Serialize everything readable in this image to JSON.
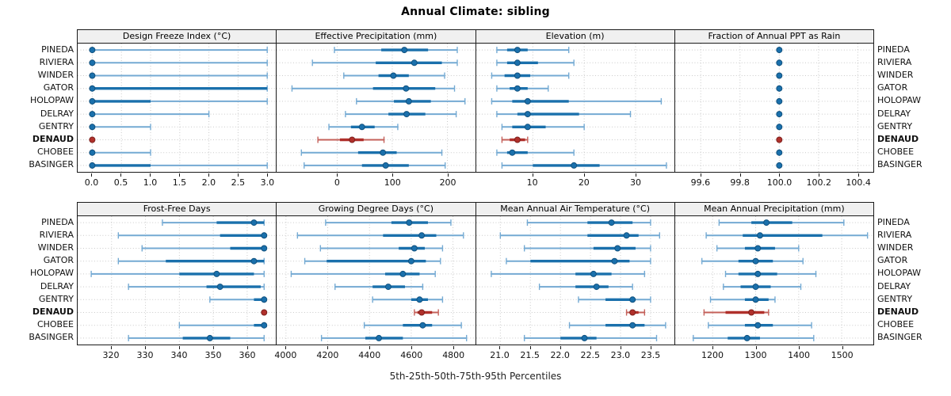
{
  "title": "Annual Climate: sibling",
  "footer": "5th-25th-50th-75th-95th Percentiles",
  "colors": {
    "blue_band": "#1a70ac",
    "blue_whisker": "#74aad3",
    "blue_dot_edge": "#11517e",
    "red_band": "#b0302b",
    "red_whisker": "#c4605a",
    "red_dot_edge": "#7e211d",
    "grid": "#c9c9c9",
    "panel_border": "#1a1a1a",
    "header_bg": "#f0f0f0"
  },
  "chart_data": {
    "type": "dotplot",
    "subtype": "percentile-interval-trellis",
    "title": "Annual Climate: sibling",
    "caption": "5th-25th-50th-75th-95th Percentiles",
    "percentiles": [
      5,
      25,
      50,
      75,
      95
    ],
    "grid": "dotted",
    "stations": [
      "PINEDA",
      "RIVIERA",
      "WINDER",
      "GATOR",
      "HOLOPAW",
      "DELRAY",
      "GENTRY",
      "DENAUD",
      "CHOBEE",
      "BASINGER"
    ],
    "highlighted_station": "DENAUD",
    "panels": [
      {
        "title": "Design Freeze Index (°C)",
        "xlim": [
          -0.25,
          3.15
        ],
        "ticks": [
          0.0,
          0.5,
          1.0,
          1.5,
          2.0,
          2.5,
          3.0
        ],
        "tick_labels": [
          "0.0",
          "0.5",
          "1.0",
          "1.5",
          "2.0",
          "2.5",
          "3.0"
        ],
        "values": [
          [
            0,
            0,
            0,
            0,
            3
          ],
          [
            0,
            0,
            0,
            0,
            3
          ],
          [
            0,
            0,
            0,
            0,
            3
          ],
          [
            0,
            0,
            0,
            3,
            3
          ],
          [
            0,
            0,
            0,
            1,
            3
          ],
          [
            0,
            0,
            0,
            0,
            2
          ],
          [
            0,
            0,
            0,
            0,
            1
          ],
          [
            0,
            0,
            0,
            0,
            0
          ],
          [
            0,
            0,
            0,
            0,
            1
          ],
          [
            0,
            0,
            0,
            1,
            3
          ]
        ]
      },
      {
        "title": "Effective Precipitation (mm)",
        "xlim": [
          -110,
          250
        ],
        "ticks": [
          0,
          100,
          200
        ],
        "tick_labels": [
          "0",
          "100",
          "200"
        ],
        "values": [
          [
            -5,
            80,
            122,
            165,
            218
          ],
          [
            -45,
            70,
            140,
            190,
            218
          ],
          [
            12,
            75,
            102,
            130,
            195
          ],
          [
            -82,
            65,
            125,
            178,
            213
          ],
          [
            35,
            103,
            130,
            170,
            232
          ],
          [
            15,
            93,
            126,
            160,
            216
          ],
          [
            -15,
            25,
            45,
            68,
            110
          ],
          [
            -35,
            5,
            27,
            48,
            85
          ],
          [
            -65,
            38,
            83,
            108,
            190
          ],
          [
            -60,
            45,
            88,
            130,
            196
          ]
        ]
      },
      {
        "title": "Elevation (m)",
        "xlim": [
          -1,
          37.6
        ],
        "ticks": [
          10,
          20,
          30
        ],
        "tick_labels": [
          "10",
          "20",
          "30"
        ],
        "values": [
          [
            3,
            5,
            7,
            9,
            17
          ],
          [
            3,
            5,
            7,
            11,
            18
          ],
          [
            2,
            4.5,
            7,
            9.5,
            17
          ],
          [
            3,
            5.5,
            7,
            9,
            13
          ],
          [
            2,
            6,
            9,
            17,
            35
          ],
          [
            3,
            7,
            9,
            19,
            29
          ],
          [
            4,
            6,
            9,
            12.5,
            20
          ],
          [
            4,
            5.5,
            7,
            8.5,
            9
          ],
          [
            3,
            5,
            6,
            9,
            18
          ],
          [
            4,
            10,
            18,
            23,
            36
          ]
        ]
      },
      {
        "title": "Fraction of Annual PPT as Rain",
        "xlim": [
          99.47,
          100.48
        ],
        "ticks": [
          99.6,
          99.8,
          100.0,
          100.2,
          100.4
        ],
        "tick_labels": [
          "99.6",
          "99.8",
          "100.0",
          "100.2",
          "100.4"
        ],
        "values": [
          [
            100,
            100,
            100,
            100,
            100
          ],
          [
            100,
            100,
            100,
            100,
            100
          ],
          [
            100,
            100,
            100,
            100,
            100
          ],
          [
            100,
            100,
            100,
            100,
            100
          ],
          [
            100,
            100,
            100,
            100,
            100
          ],
          [
            100,
            100,
            100,
            100,
            100
          ],
          [
            100,
            100,
            100,
            100,
            100
          ],
          [
            100,
            100,
            100,
            100,
            100
          ],
          [
            100,
            100,
            100,
            100,
            100
          ],
          [
            100,
            100,
            100,
            100,
            100
          ]
        ]
      },
      {
        "title": "Frost-Free Days",
        "xlim": [
          310,
          368.5
        ],
        "ticks": [
          320,
          330,
          340,
          350,
          360
        ],
        "tick_labels": [
          "320",
          "330",
          "340",
          "350",
          "360"
        ],
        "values": [
          [
            335,
            351,
            362,
            365,
            365
          ],
          [
            322,
            352,
            365,
            365,
            365
          ],
          [
            329,
            355,
            365,
            365,
            365
          ],
          [
            322,
            336,
            362,
            365,
            365
          ],
          [
            314,
            340,
            351,
            362,
            365
          ],
          [
            325,
            348,
            352,
            364,
            365
          ],
          [
            349,
            362,
            365,
            365,
            365
          ],
          [
            365,
            365,
            365,
            365,
            365
          ],
          [
            340,
            362,
            365,
            365,
            365
          ],
          [
            325,
            341,
            349,
            355,
            365
          ]
        ]
      },
      {
        "title": "Growing Degree Days (°C)",
        "xlim": [
          3955,
          4905
        ],
        "ticks": [
          4000,
          4200,
          4400,
          4600,
          4800
        ],
        "tick_labels": [
          "4000",
          "4200",
          "4400",
          "4600",
          "4800"
        ],
        "values": [
          [
            4190,
            4505,
            4590,
            4680,
            4790
          ],
          [
            4055,
            4465,
            4650,
            4720,
            4850
          ],
          [
            4165,
            4540,
            4615,
            4665,
            4750
          ],
          [
            4090,
            4195,
            4600,
            4670,
            4740
          ],
          [
            4025,
            4475,
            4560,
            4640,
            4715
          ],
          [
            4235,
            4415,
            4490,
            4570,
            4655
          ],
          [
            4415,
            4600,
            4640,
            4680,
            4750
          ],
          [
            4615,
            4630,
            4650,
            4700,
            4730
          ],
          [
            4375,
            4560,
            4655,
            4700,
            4840
          ],
          [
            4170,
            4380,
            4445,
            4560,
            4865
          ]
        ]
      },
      {
        "title": "Mean Annual Air Temperature (°C)",
        "xlim": [
          20.6,
          23.9
        ],
        "ticks": [
          21.0,
          21.5,
          22.0,
          22.5,
          23.0,
          23.5
        ],
        "tick_labels": [
          "21.0",
          "21.5",
          "22.0",
          "22.5",
          "23.0",
          "23.5"
        ],
        "values": [
          [
            21.45,
            22.45,
            22.85,
            23.2,
            23.5
          ],
          [
            21.0,
            22.45,
            23.1,
            23.3,
            23.65
          ],
          [
            21.4,
            22.55,
            22.95,
            23.25,
            23.5
          ],
          [
            21.1,
            21.5,
            22.9,
            23.15,
            23.5
          ],
          [
            20.85,
            22.25,
            22.55,
            22.85,
            23.4
          ],
          [
            21.65,
            22.25,
            22.6,
            22.8,
            23.2
          ],
          [
            22.3,
            22.75,
            23.2,
            23.25,
            23.5
          ],
          [
            23.1,
            23.15,
            23.2,
            23.3,
            23.4
          ],
          [
            22.15,
            22.75,
            23.2,
            23.4,
            23.75
          ],
          [
            21.4,
            22.0,
            22.4,
            22.6,
            23.6
          ]
        ]
      },
      {
        "title": "Mean Annual Precipitation (mm)",
        "xlim": [
          1113,
          1574
        ],
        "ticks": [
          1200,
          1300,
          1400,
          1500
        ],
        "tick_labels": [
          "1200",
          "1300",
          "1400",
          "1500"
        ],
        "values": [
          [
            1215,
            1290,
            1325,
            1385,
            1505
          ],
          [
            1185,
            1270,
            1310,
            1455,
            1560
          ],
          [
            1210,
            1275,
            1305,
            1345,
            1400
          ],
          [
            1175,
            1260,
            1300,
            1340,
            1410
          ],
          [
            1230,
            1260,
            1305,
            1350,
            1440
          ],
          [
            1225,
            1265,
            1300,
            1335,
            1405
          ],
          [
            1195,
            1275,
            1300,
            1330,
            1345
          ],
          [
            1180,
            1230,
            1290,
            1320,
            1330
          ],
          [
            1190,
            1275,
            1305,
            1340,
            1430
          ],
          [
            1155,
            1235,
            1280,
            1310,
            1435
          ]
        ]
      }
    ]
  }
}
